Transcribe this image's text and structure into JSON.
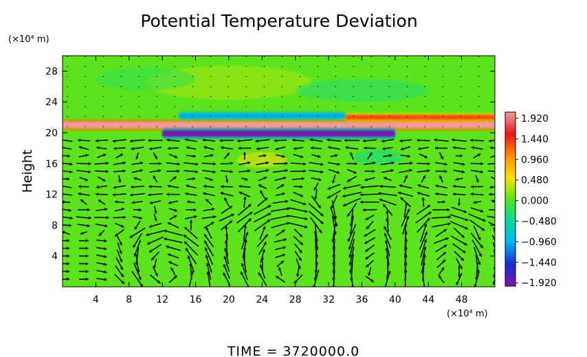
{
  "chart_data": {
    "type": "heatmap",
    "title": "Potential Temperature Deviation",
    "ylabel": "Height",
    "y_units": "(×10⁴ m)",
    "x_units": "(×10⁴ m)",
    "footer": "TIME  =  3720000.0",
    "xlim": [
      0,
      52
    ],
    "ylim": [
      0,
      30
    ],
    "x_ticks": [
      "4",
      "8",
      "12",
      "16",
      "20",
      "24",
      "28",
      "32",
      "36",
      "40",
      "44",
      "48"
    ],
    "y_ticks": [
      "4",
      "8",
      "12",
      "16",
      "20",
      "24",
      "28"
    ],
    "x_tick_values": [
      4,
      8,
      12,
      16,
      20,
      24,
      28,
      32,
      36,
      40,
      44,
      48
    ],
    "y_tick_values": [
      4,
      8,
      12,
      16,
      20,
      24,
      28
    ],
    "colorbar": {
      "labels": [
        "1.920",
        "1.440",
        "0.960",
        "0.480",
        "0.000",
        "−0.480",
        "−0.960",
        "−1.440",
        "−1.920"
      ],
      "values": [
        1.92,
        1.44,
        0.96,
        0.48,
        0.0,
        -0.48,
        -0.96,
        -1.44,
        -1.92
      ],
      "colors": [
        "#f2a0a0",
        "#e8151a",
        "#ff8c00",
        "#ffe000",
        "#58e61c",
        "#00d8a0",
        "#00b4f0",
        "#1a2ad8",
        "#7a1aa8"
      ]
    },
    "field_features": [
      {
        "name": "warm band",
        "x_range": [
          0,
          52
        ],
        "y_center": 21.0,
        "value": 1.9
      },
      {
        "name": "cold band",
        "x_range": [
          12,
          40
        ],
        "y_center": 19.9,
        "value": -1.9
      },
      {
        "name": "cold band",
        "x_range": [
          14,
          34
        ],
        "y_center": 22.2,
        "value": -1.0
      },
      {
        "name": "warm band",
        "x_range": [
          34,
          52
        ],
        "y_center": 22.0,
        "value": 1.2
      }
    ],
    "wind_vortices": [
      {
        "x": 12.5,
        "y": 3.0,
        "radius_x": 3.0,
        "radius_y": 3.2,
        "sense": 1
      },
      {
        "x": 27.5,
        "y": 4.5,
        "radius_x": 4.5,
        "radius_y": 4.5,
        "sense": -1
      },
      {
        "x": 37.0,
        "y": 4.5,
        "radius_x": 4.0,
        "radius_y": 4.5,
        "sense": 1
      },
      {
        "x": 45.5,
        "y": 3.5,
        "radius_x": 3.5,
        "radius_y": 3.8,
        "sense": -1
      }
    ],
    "grid": false,
    "legend": "right colorbar"
  }
}
